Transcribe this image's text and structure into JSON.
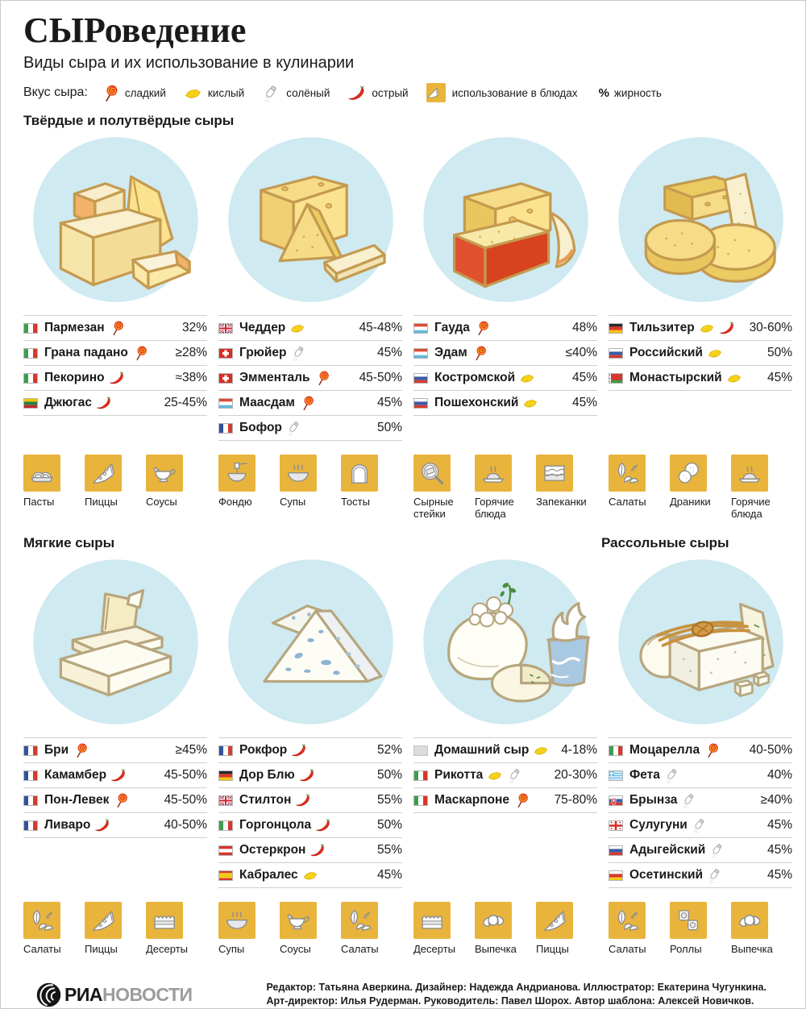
{
  "page": {
    "title": "СЫРоведение",
    "subtitle": "Виды сыра и их использование в кулинарии"
  },
  "colors": {
    "accent_yellow": "#e9b43c",
    "circle_blue": "#cfeaf1",
    "outline_brown": "#c49a50",
    "wax_red": "#e1502e"
  },
  "legend": {
    "label": "Вкус сыра:",
    "tastes": [
      {
        "id": "sweet",
        "icon": "lollipop-icon",
        "label": "сладкий"
      },
      {
        "id": "sour",
        "icon": "lemon-icon",
        "label": "кислый"
      },
      {
        "id": "salty",
        "icon": "salt-shaker-icon",
        "label": "солёный"
      },
      {
        "id": "spicy",
        "icon": "chili-icon",
        "label": "острый"
      }
    ],
    "usage": {
      "icon": "cheese-wedge-checkbox-icon",
      "label": "использование в блюдах"
    },
    "fat": {
      "symbol": "%",
      "label": "жирность"
    }
  },
  "taste_icons": {
    "sweet": "lollipop-icon",
    "sour": "lemon-icon",
    "salty": "salt-shaker-icon",
    "spicy": "chili-icon"
  },
  "sections": [
    {
      "title": "Твёрдые и полутвёрдые сыры",
      "columns": [
        {
          "scene": "parmesan",
          "cheeses": [
            {
              "flag": "italy",
              "name": "Пармезан",
              "tastes": [
                "sweet"
              ],
              "fat": "32%"
            },
            {
              "flag": "italy",
              "name": "Грана падано",
              "tastes": [
                "sweet"
              ],
              "fat": "≥28%"
            },
            {
              "flag": "italy",
              "name": "Пекорино",
              "tastes": [
                "spicy"
              ],
              "fat": "≈38%"
            },
            {
              "flag": "lithuania",
              "name": "Джюгас",
              "tastes": [
                "spicy"
              ],
              "fat": "25-45%"
            }
          ],
          "dishes": [
            {
              "icon": "pasta",
              "label": "Пасты"
            },
            {
              "icon": "pizza",
              "label": "Пиццы"
            },
            {
              "icon": "sauce",
              "label": "Соусы"
            }
          ]
        },
        {
          "scene": "cheddar",
          "cheeses": [
            {
              "flag": "uk",
              "name": "Чеддер",
              "tastes": [
                "sour"
              ],
              "fat": "45-48%"
            },
            {
              "flag": "switzerland",
              "name": "Грюйер",
              "tastes": [
                "salty"
              ],
              "fat": "45%"
            },
            {
              "flag": "switzerland",
              "name": "Эмменталь",
              "tastes": [
                "sweet"
              ],
              "fat": "45-50%"
            },
            {
              "flag": "netherlands",
              "name": "Маасдам",
              "tastes": [
                "sweet"
              ],
              "fat": "45%"
            },
            {
              "flag": "france",
              "name": "Бофор",
              "tastes": [
                "salty"
              ],
              "fat": "50%"
            }
          ],
          "dishes": [
            {
              "icon": "fondue",
              "label": "Фондю"
            },
            {
              "icon": "soup",
              "label": "Супы"
            },
            {
              "icon": "toast",
              "label": "Тосты"
            }
          ]
        },
        {
          "scene": "gouda",
          "cheeses": [
            {
              "flag": "netherlands",
              "name": "Гауда",
              "tastes": [
                "sweet"
              ],
              "fat": "48%"
            },
            {
              "flag": "netherlands",
              "name": "Эдам",
              "tastes": [
                "sweet"
              ],
              "fat": "≤40%"
            },
            {
              "flag": "russia",
              "name": "Костромской",
              "tastes": [
                "sour"
              ],
              "fat": "45%"
            },
            {
              "flag": "russia",
              "name": "Пошехонский",
              "tastes": [
                "sour"
              ],
              "fat": "45%"
            }
          ],
          "dishes": [
            {
              "icon": "cheesesteak",
              "label": "Сырные стейки"
            },
            {
              "icon": "hotdish",
              "label": "Горячие блюда"
            },
            {
              "icon": "casserole",
              "label": "Запеканки"
            }
          ]
        },
        {
          "scene": "tilsiter",
          "cheeses": [
            {
              "flag": "germany",
              "name": "Тильзитер",
              "tastes": [
                "sour",
                "spicy"
              ],
              "fat": "30-60%"
            },
            {
              "flag": "russia",
              "name": "Российский",
              "tastes": [
                "sour"
              ],
              "fat": "50%"
            },
            {
              "flag": "belarus",
              "name": "Монастырский",
              "tastes": [
                "sour"
              ],
              "fat": "45%"
            }
          ],
          "dishes": [
            {
              "icon": "salad",
              "label": "Салаты"
            },
            {
              "icon": "draniki",
              "label": "Драники"
            },
            {
              "icon": "hotdish",
              "label": "Горячие блюда"
            }
          ]
        }
      ]
    },
    {
      "title": "Мягкие сыры",
      "title_right": "Рассольные сыры",
      "columns": [
        {
          "scene": "brie",
          "cheeses": [
            {
              "flag": "france",
              "name": "Бри",
              "tastes": [
                "sweet"
              ],
              "fat": "≥45%"
            },
            {
              "flag": "france",
              "name": "Камамбер",
              "tastes": [
                "spicy"
              ],
              "fat": "45-50%"
            },
            {
              "flag": "france",
              "name": "Пон-Левек",
              "tastes": [
                "sweet"
              ],
              "fat": "45-50%"
            },
            {
              "flag": "france",
              "name": "Ливаро",
              "tastes": [
                "spicy"
              ],
              "fat": "40-50%"
            }
          ],
          "dishes": [
            {
              "icon": "salad",
              "label": "Салаты"
            },
            {
              "icon": "pizza",
              "label": "Пиццы"
            },
            {
              "icon": "cake",
              "label": "Десерты"
            }
          ]
        },
        {
          "scene": "blue",
          "cheeses": [
            {
              "flag": "france",
              "name": "Рокфор",
              "tastes": [
                "spicy"
              ],
              "fat": "52%"
            },
            {
              "flag": "germany",
              "name": "Дор Блю",
              "tastes": [
                "spicy"
              ],
              "fat": "50%"
            },
            {
              "flag": "uk",
              "name": "Стилтон",
              "tastes": [
                "spicy"
              ],
              "fat": "55%"
            },
            {
              "flag": "italy",
              "name": "Горгонцола",
              "tastes": [
                "spicy"
              ],
              "fat": "50%"
            },
            {
              "flag": "austria",
              "name": "Остеркрон",
              "tastes": [
                "spicy"
              ],
              "fat": "55%"
            },
            {
              "flag": "spain",
              "name": "Кабралес",
              "tastes": [
                "sour"
              ],
              "fat": "45%"
            }
          ],
          "dishes": [
            {
              "icon": "soup",
              "label": "Супы"
            },
            {
              "icon": "sauce",
              "label": "Соусы"
            },
            {
              "icon": "salad",
              "label": "Салаты"
            }
          ]
        },
        {
          "scene": "fresh",
          "cheeses": [
            {
              "flag": "none",
              "name": "Домашний сыр",
              "tastes": [
                "sour"
              ],
              "fat": "4-18%"
            },
            {
              "flag": "italy",
              "name": "Рикотта",
              "tastes": [
                "sour",
                "salty"
              ],
              "fat": "20-30%"
            },
            {
              "flag": "italy",
              "name": "Маскарпоне",
              "tastes": [
                "sweet"
              ],
              "fat": "75-80%"
            }
          ],
          "dishes": [
            {
              "icon": "cake",
              "label": "Десерты"
            },
            {
              "icon": "croissant",
              "label": "Выпечка"
            },
            {
              "icon": "pizza",
              "label": "Пиццы"
            }
          ]
        },
        {
          "scene": "brine",
          "cheeses": [
            {
              "flag": "italy",
              "name": "Моцарелла",
              "tastes": [
                "sweet"
              ],
              "fat": "40-50%"
            },
            {
              "flag": "greece",
              "name": "Фета",
              "tastes": [
                "salty"
              ],
              "fat": "40%"
            },
            {
              "flag": "slovakia",
              "name": "Брынза",
              "tastes": [
                "salty"
              ],
              "fat": "≥40%"
            },
            {
              "flag": "georgia",
              "name": "Сулугуни",
              "tastes": [
                "salty"
              ],
              "fat": "45%"
            },
            {
              "flag": "russia",
              "name": "Адыгейский",
              "tastes": [
                "salty"
              ],
              "fat": "45%"
            },
            {
              "flag": "ossetia",
              "name": "Осетинский",
              "tastes": [
                "salty"
              ],
              "fat": "45%"
            }
          ],
          "dishes": [
            {
              "icon": "salad",
              "label": "Салаты"
            },
            {
              "icon": "rolls",
              "label": "Роллы"
            },
            {
              "icon": "croissant",
              "label": "Выпечка"
            }
          ]
        }
      ]
    }
  ],
  "footer": {
    "brand_ria": "РИА",
    "brand_novosti": "НОВОСТИ",
    "credits_line1": "Редактор: Татьяна Аверкина. Дизайнер: Надежда Андрианова. Иллюстратор: Екатерина Чугункина.",
    "credits_line2": "Арт-директор: Илья Рудерман. Руководитель: Павел Шорох. Автор шаблона: Алексей Новичков."
  }
}
